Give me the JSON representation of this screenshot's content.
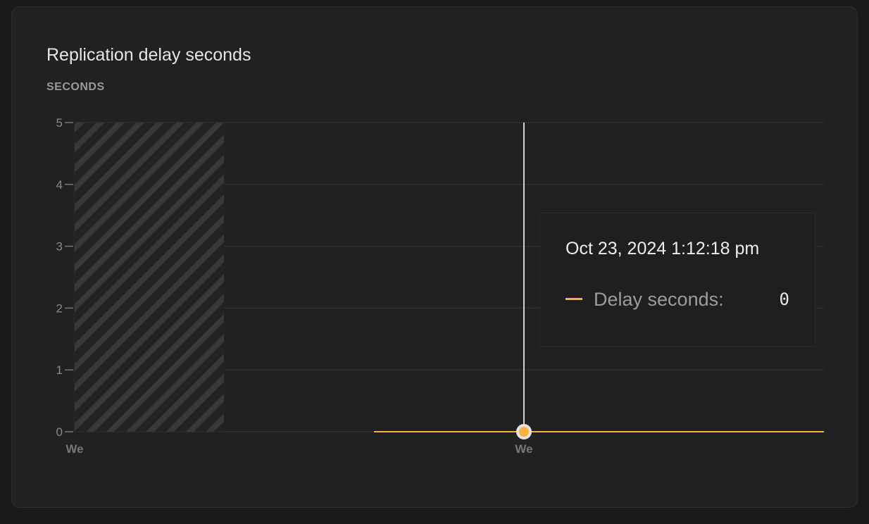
{
  "chart_data": {
    "type": "line",
    "title": "Replication delay seconds",
    "ylabel": "SECONDS",
    "ylim": [
      0,
      5
    ],
    "yticks": [
      "0",
      "1",
      "2",
      "3",
      "4",
      "5"
    ],
    "xticks": [
      "We",
      "We"
    ],
    "grid": true,
    "series": [
      {
        "name": "Delay seconds",
        "values": [
          0
        ],
        "color": "#f9b13f"
      }
    ],
    "no_data_region": "hatched"
  },
  "tooltip": {
    "date": "Oct 23, 2024 1:12:18 pm",
    "label": "Delay seconds:",
    "value": "0",
    "color": "#f9b13f"
  }
}
